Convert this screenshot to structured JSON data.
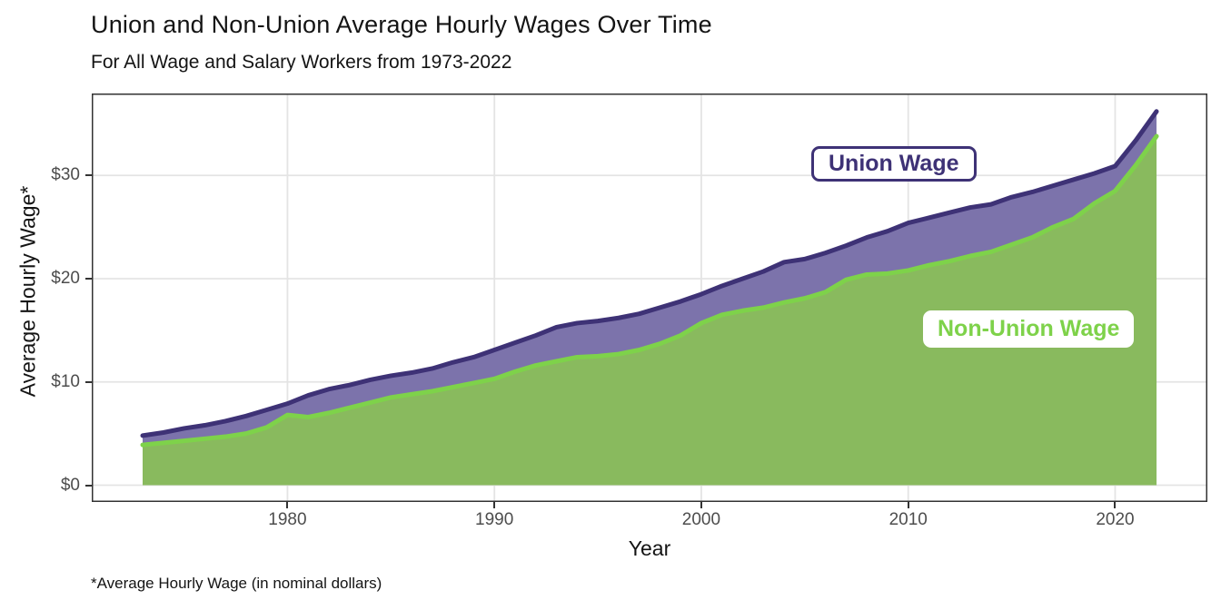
{
  "chart_data": {
    "type": "area",
    "title": "Union and Non-Union Average Hourly Wages Over Time",
    "subtitle": "For All Wage and Salary Workers from 1973-2022",
    "xlabel": "Year",
    "ylabel": "Average Hourly Wage*",
    "caption": "*Average Hourly Wage (in nominal dollars)",
    "x_range": [
      1973,
      2022
    ],
    "ylim": [
      0,
      37.9
    ],
    "grid": "major-only",
    "legend": "inline-annotation-boxes",
    "x_ticks": {
      "values": [
        1980,
        1990,
        2000,
        2010,
        2020
      ],
      "labels": [
        "1980",
        "1990",
        "2000",
        "2010",
        "2020"
      ]
    },
    "y_ticks": {
      "values": [
        0,
        10,
        20,
        30
      ],
      "labels": [
        "$0",
        "$10",
        "$20",
        "$30"
      ]
    },
    "years": [
      1973,
      1974,
      1975,
      1976,
      1977,
      1978,
      1979,
      1980,
      1981,
      1982,
      1983,
      1984,
      1985,
      1986,
      1987,
      1988,
      1989,
      1990,
      1991,
      1992,
      1993,
      1994,
      1995,
      1996,
      1997,
      1998,
      1999,
      2000,
      2001,
      2002,
      2003,
      2004,
      2005,
      2006,
      2007,
      2008,
      2009,
      2010,
      2011,
      2012,
      2013,
      2014,
      2015,
      2016,
      2017,
      2018,
      2019,
      2020,
      2021,
      2022
    ],
    "series": [
      {
        "name": "Union Wage",
        "line_color": "#3e3276",
        "fill_color": "#7c73ab",
        "values": [
          4.8,
          5.1,
          5.5,
          5.8,
          6.2,
          6.7,
          7.3,
          7.9,
          8.7,
          9.3,
          9.7,
          10.2,
          10.6,
          10.9,
          11.3,
          11.9,
          12.4,
          13.1,
          13.8,
          14.5,
          15.3,
          15.7,
          15.9,
          16.2,
          16.6,
          17.2,
          17.8,
          18.5,
          19.3,
          20.0,
          20.7,
          21.6,
          21.9,
          22.5,
          23.2,
          24.0,
          24.6,
          25.4,
          25.9,
          26.4,
          26.9,
          27.2,
          27.9,
          28.4,
          29.0,
          29.6,
          30.2,
          30.9,
          33.4,
          36.2
        ]
      },
      {
        "name": "Non-Union Wage",
        "line_color": "#7ed24a",
        "fill_color": "#89ba5e",
        "values": [
          3.9,
          4.1,
          4.3,
          4.5,
          4.7,
          5.0,
          5.6,
          6.8,
          6.6,
          7.0,
          7.5,
          8.0,
          8.5,
          8.8,
          9.1,
          9.5,
          9.9,
          10.3,
          11.0,
          11.6,
          12.0,
          12.4,
          12.5,
          12.7,
          13.1,
          13.7,
          14.5,
          15.7,
          16.5,
          16.9,
          17.2,
          17.7,
          18.1,
          18.7,
          19.9,
          20.4,
          20.5,
          20.8,
          21.3,
          21.7,
          22.2,
          22.6,
          23.3,
          24.0,
          25.0,
          25.8,
          27.3,
          28.5,
          31.0,
          33.8
        ]
      }
    ],
    "annotations": [
      {
        "text": "Union Wage",
        "color": "#3e3276",
        "border_color": "#3e3276",
        "bg": "#ffffff"
      },
      {
        "text": "Non-Union Wage",
        "color": "#7ed24a",
        "border_color": "#ffffff",
        "bg": "#ffffff"
      }
    ]
  },
  "colors": {
    "background": "#ffffff",
    "grid": "#e4e4e4",
    "panel_border": "#333333",
    "tick": "#333333",
    "tick_label": "#4d4d4d",
    "text": "#141414"
  }
}
